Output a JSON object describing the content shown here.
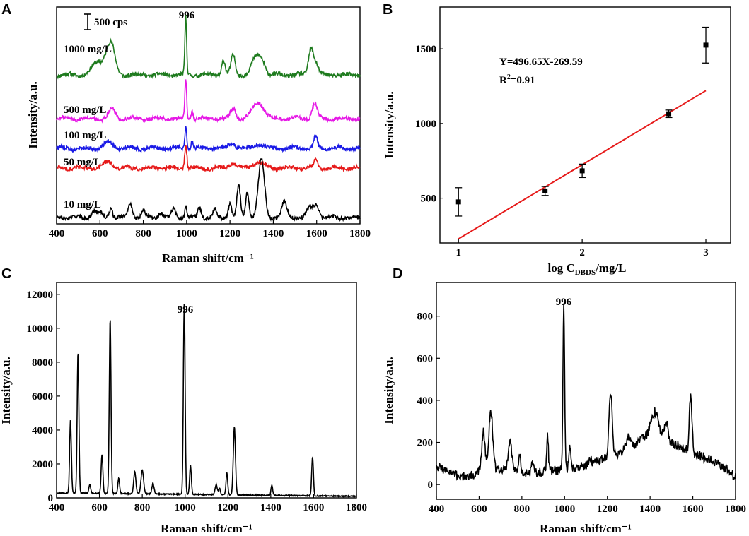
{
  "figure": {
    "panels": [
      {
        "id": "A",
        "label": "A"
      },
      {
        "id": "B",
        "label": "B"
      },
      {
        "id": "C",
        "label": "C"
      },
      {
        "id": "D",
        "label": "D"
      }
    ]
  },
  "chart_data": [
    {
      "id": "A",
      "type": "line",
      "title": "",
      "xlabel": "Raman shift/cm⁻¹",
      "ylabel": "Intensity/a.u.",
      "xlim": [
        400,
        1800
      ],
      "xticks": [
        400,
        600,
        800,
        1000,
        1200,
        1400,
        1600,
        1800
      ],
      "scale_bar_label": "500 cps",
      "peak_label": "996",
      "peak_x": 996,
      "series": [
        {
          "name": "1000 mg/L",
          "color": "#1e7b1e",
          "peaks": [
            [
              590,
              60,
              25
            ],
            [
              640,
              110,
              18
            ],
            [
              660,
              70,
              15
            ],
            [
              996,
              270,
              4
            ],
            [
              1170,
              70,
              8
            ],
            [
              1215,
              90,
              10
            ],
            [
              1320,
              80,
              20
            ],
            [
              1350,
              50,
              15
            ],
            [
              1575,
              130,
              12
            ],
            [
              1600,
              40,
              10
            ]
          ]
        },
        {
          "name": "500 mg/L",
          "color": "#e619e6",
          "peaks": [
            [
              655,
              45,
              15
            ],
            [
              996,
              190,
              4
            ],
            [
              1025,
              40,
              5
            ],
            [
              1215,
              50,
              12
            ],
            [
              1330,
              80,
              25
            ],
            [
              1590,
              70,
              12
            ]
          ]
        },
        {
          "name": "100 mg/L",
          "color": "#1a1ae6",
          "peaks": [
            [
              640,
              30,
              20
            ],
            [
              996,
              110,
              4
            ],
            [
              1025,
              35,
              5
            ],
            [
              1210,
              25,
              15
            ],
            [
              1330,
              20,
              20
            ],
            [
              1595,
              55,
              8
            ]
          ]
        },
        {
          "name": "50 mg/L",
          "color": "#e61a1a",
          "peaks": [
            [
              640,
              30,
              20
            ],
            [
              996,
              110,
              5
            ],
            [
              1210,
              25,
              15
            ],
            [
              1330,
              30,
              25
            ],
            [
              1595,
              40,
              8
            ]
          ]
        },
        {
          "name": "10 mg/L",
          "color": "#000000",
          "peaks": [
            [
              570,
              35,
              10
            ],
            [
              600,
              25,
              10
            ],
            [
              650,
              45,
              8
            ],
            [
              740,
              70,
              10
            ],
            [
              800,
              35,
              8
            ],
            [
              880,
              25,
              10
            ],
            [
              940,
              40,
              10
            ],
            [
              996,
              55,
              5
            ],
            [
              1060,
              50,
              8
            ],
            [
              1130,
              40,
              8
            ],
            [
              1200,
              70,
              8
            ],
            [
              1240,
              150,
              8
            ],
            [
              1280,
              120,
              8
            ],
            [
              1345,
              270,
              14
            ],
            [
              1450,
              70,
              12
            ],
            [
              1570,
              45,
              15
            ],
            [
              1600,
              55,
              12
            ]
          ]
        }
      ]
    },
    {
      "id": "B",
      "type": "scatter",
      "title": "",
      "xlabel_prefix": "log C",
      "xlabel_sub": "DBDS",
      "xlabel_suffix": "/mg/L",
      "ylabel": "Intensity/a.u.",
      "xlim": [
        0.85,
        3.2
      ],
      "ylim": [
        200,
        1780
      ],
      "xticks": [
        1,
        2,
        3
      ],
      "yticks": [
        500,
        1000,
        1500
      ],
      "points": [
        {
          "x": 1.0,
          "y": 475,
          "err": 95
        },
        {
          "x": 1.7,
          "y": 548,
          "err": 30
        },
        {
          "x": 2.0,
          "y": 683,
          "err": 45
        },
        {
          "x": 2.7,
          "y": 1065,
          "err": 25
        },
        {
          "x": 3.0,
          "y": 1525,
          "err": 120
        }
      ],
      "fit": {
        "slope": 496.65,
        "intercept": -269.59,
        "x_range": [
          1.0,
          3.0
        ],
        "color": "#e61a1a"
      },
      "equation": "Y=496.65X-269.59",
      "r2_prefix": "R",
      "r2_sup": "2",
      "r2_suffix": "=0.91"
    },
    {
      "id": "C",
      "type": "line",
      "title": "",
      "xlabel": "Raman shift/cm⁻¹",
      "ylabel": "Intensity/a.u.",
      "xlim": [
        400,
        1800
      ],
      "ylim": [
        0,
        12700
      ],
      "xticks": [
        400,
        600,
        800,
        1000,
        1200,
        1400,
        1600,
        1800
      ],
      "yticks": [
        0,
        2000,
        4000,
        6000,
        8000,
        10000,
        12000
      ],
      "baseline": 300,
      "peak_label": "996",
      "peak_x": 996,
      "peaks": [
        [
          465,
          4300,
          4
        ],
        [
          500,
          8300,
          4
        ],
        [
          555,
          500,
          4
        ],
        [
          612,
          2300,
          4
        ],
        [
          650,
          10300,
          4
        ],
        [
          690,
          900,
          4
        ],
        [
          765,
          1300,
          5
        ],
        [
          800,
          1400,
          6
        ],
        [
          850,
          600,
          5
        ],
        [
          996,
          11300,
          4
        ],
        [
          1025,
          1700,
          4
        ],
        [
          1145,
          600,
          5
        ],
        [
          1160,
          400,
          4
        ],
        [
          1195,
          1300,
          4
        ],
        [
          1230,
          4000,
          5
        ],
        [
          1405,
          600,
          4
        ],
        [
          1595,
          2300,
          4
        ]
      ],
      "color": "#000000"
    },
    {
      "id": "D",
      "type": "line",
      "title": "",
      "xlabel": "Raman shift/cm⁻¹",
      "ylabel": "Intensity/a.u.",
      "xlim": [
        400,
        1800
      ],
      "ylim": [
        -70,
        960
      ],
      "xticks": [
        400,
        600,
        800,
        1000,
        1200,
        1400,
        1600,
        1800
      ],
      "yticks": [
        0,
        200,
        400,
        600,
        800
      ],
      "peak_label": "996",
      "peak_x": 996,
      "baseline": [
        [
          400,
          90
        ],
        [
          500,
          40
        ],
        [
          550,
          40
        ],
        [
          620,
          60
        ],
        [
          700,
          70
        ],
        [
          800,
          50
        ],
        [
          900,
          60
        ],
        [
          1000,
          70
        ],
        [
          1100,
          90
        ],
        [
          1200,
          130
        ],
        [
          1300,
          170
        ],
        [
          1380,
          230
        ],
        [
          1430,
          260
        ],
        [
          1500,
          200
        ],
        [
          1600,
          150
        ],
        [
          1700,
          110
        ],
        [
          1800,
          40
        ]
      ],
      "peaks": [
        [
          620,
          190,
          8
        ],
        [
          655,
          280,
          9
        ],
        [
          745,
          140,
          9
        ],
        [
          790,
          90,
          6
        ],
        [
          850,
          50,
          5
        ],
        [
          920,
          180,
          4
        ],
        [
          996,
          770,
          4
        ],
        [
          1025,
          110,
          5
        ],
        [
          1120,
          30,
          6
        ],
        [
          1215,
          310,
          7
        ],
        [
          1300,
          60,
          10
        ],
        [
          1420,
          90,
          15
        ],
        [
          1475,
          80,
          8
        ],
        [
          1590,
          270,
          6
        ]
      ],
      "color": "#000000"
    }
  ]
}
